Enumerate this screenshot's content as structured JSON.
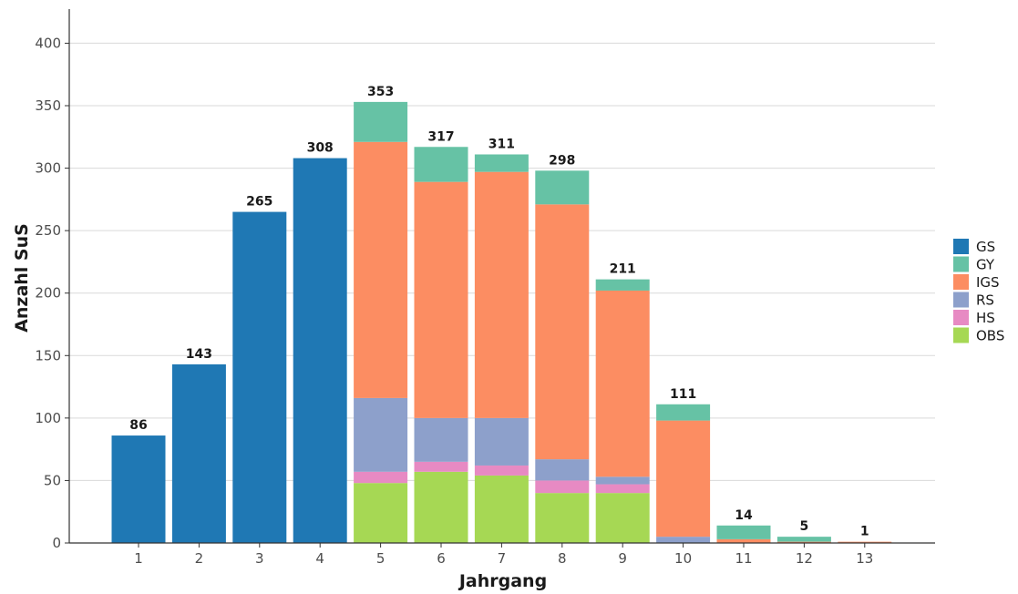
{
  "chart_data": {
    "type": "bar",
    "stacked": true,
    "xlabel": "Jahrgang",
    "ylabel": "Anzahl SuS",
    "ylim": [
      0,
      420
    ],
    "yticks": [
      0,
      50,
      100,
      150,
      200,
      250,
      300,
      350,
      400
    ],
    "grid": "horizontal",
    "legend_position": "right",
    "categories": [
      "1",
      "2",
      "3",
      "4",
      "5",
      "6",
      "7",
      "8",
      "9",
      "10",
      "11",
      "12",
      "13"
    ],
    "totals": [
      86,
      143,
      265,
      308,
      353,
      317,
      311,
      298,
      211,
      111,
      14,
      5,
      1
    ],
    "series": [
      {
        "name": "OBS",
        "color": "#a6d854",
        "values": [
          0,
          0,
          0,
          0,
          48,
          57,
          54,
          40,
          40,
          0,
          0,
          0,
          0
        ]
      },
      {
        "name": "HS",
        "color": "#e78ac3",
        "values": [
          0,
          0,
          0,
          0,
          9,
          8,
          8,
          10,
          7,
          0,
          0,
          0,
          0
        ]
      },
      {
        "name": "RS",
        "color": "#8da0cb",
        "values": [
          0,
          0,
          0,
          0,
          59,
          35,
          38,
          17,
          6,
          5,
          0,
          0,
          0
        ]
      },
      {
        "name": "IGS",
        "color": "#fc8d62",
        "values": [
          0,
          0,
          0,
          0,
          205,
          189,
          197,
          204,
          149,
          93,
          3,
          1,
          1
        ]
      },
      {
        "name": "GY",
        "color": "#66c2a5",
        "values": [
          0,
          0,
          0,
          0,
          32,
          28,
          14,
          27,
          9,
          13,
          11,
          4,
          0
        ]
      },
      {
        "name": "GS",
        "color": "#1f78b4",
        "values": [
          86,
          143,
          265,
          308,
          0,
          0,
          0,
          0,
          0,
          0,
          0,
          0,
          0
        ]
      }
    ],
    "legend_order": [
      "GS",
      "GY",
      "IGS",
      "RS",
      "HS",
      "OBS"
    ]
  }
}
